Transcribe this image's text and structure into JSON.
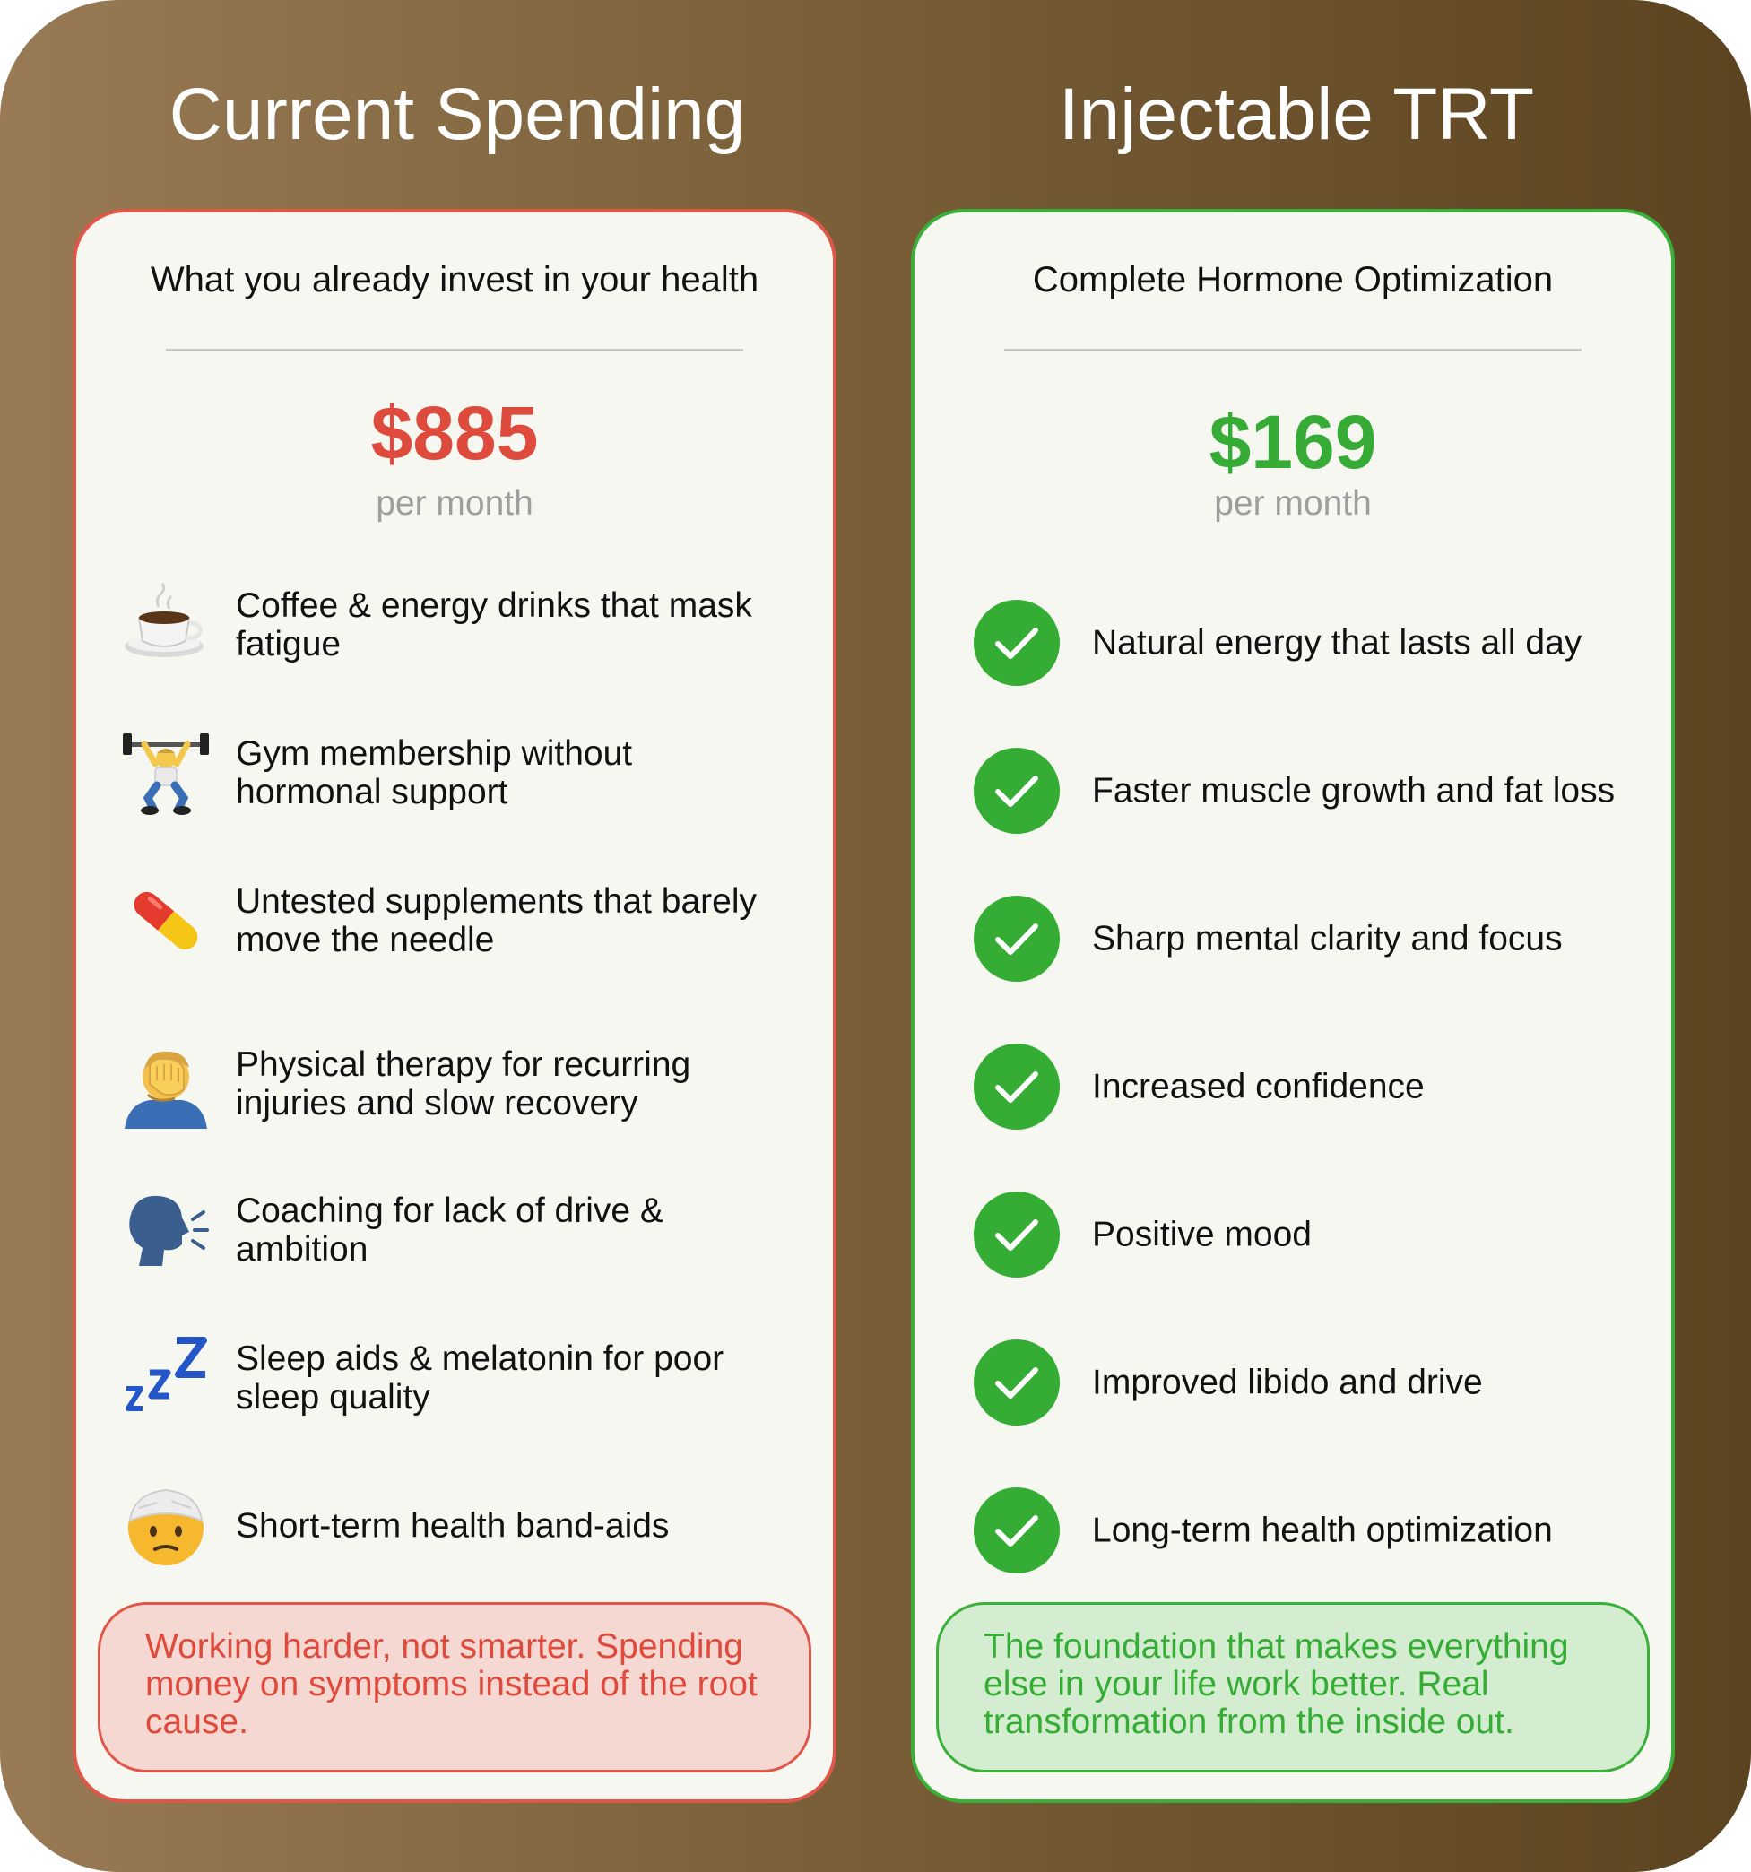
{
  "left": {
    "title": "Current Spending",
    "subtitle": "What you already invest in your health",
    "price": "$885",
    "period": "per month",
    "items": [
      {
        "icon": "coffee-icon",
        "text": "Coffee & energy drinks that mask fatigue"
      },
      {
        "icon": "weightlifter-icon",
        "text": "Gym membership without hormonal support"
      },
      {
        "icon": "pill-icon",
        "text": "Untested supplements that barely move the needle"
      },
      {
        "icon": "facepalm-icon",
        "text": "Physical therapy for recurring injuries and slow recovery"
      },
      {
        "icon": "speaking-head-icon",
        "text": "Coaching for lack of drive & ambition"
      },
      {
        "icon": "zzz-icon",
        "text": "Sleep aids & melatonin for poor sleep quality"
      },
      {
        "icon": "head-bandage-icon",
        "text": "Short-term health band-aids"
      }
    ],
    "note": "Working harder, not smarter. Spending money on symptoms instead of the root cause.",
    "accent": "#e0574a"
  },
  "right": {
    "title": "Injectable TRT",
    "subtitle": "Complete Hormone Optimization",
    "price": "$169",
    "period": "per month",
    "items": [
      {
        "icon": "check-icon",
        "text": "Natural energy that lasts all day"
      },
      {
        "icon": "check-icon",
        "text": "Faster muscle growth and fat loss"
      },
      {
        "icon": "check-icon",
        "text": "Sharp mental clarity and focus"
      },
      {
        "icon": "check-icon",
        "text": "Increased confidence"
      },
      {
        "icon": "check-icon",
        "text": "Positive mood"
      },
      {
        "icon": "check-icon",
        "text": "Improved libido and drive"
      },
      {
        "icon": "check-icon",
        "text": "Long-term health optimization"
      }
    ],
    "note": "The foundation that makes everything else in your life work better. Real transformation from the inside out.",
    "accent": "#3aaf3a"
  }
}
